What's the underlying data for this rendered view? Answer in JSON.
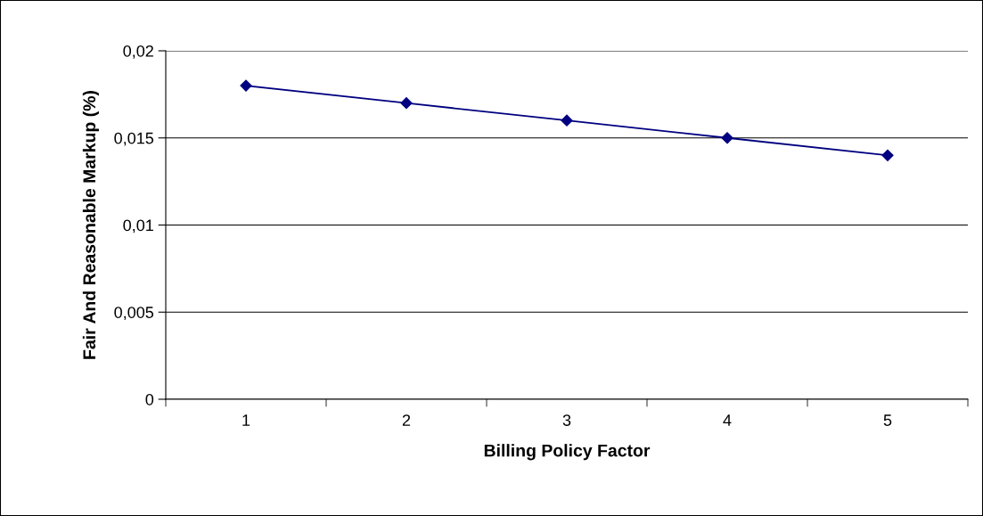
{
  "chart_data": {
    "type": "line",
    "xlabel": "Billing Policy Factor",
    "ylabel": "Fair And Reasonable Markup (%)",
    "categories": [
      "1",
      "2",
      "3",
      "4",
      "5"
    ],
    "series": [
      {
        "color": "#000080",
        "values": [
          0.018,
          0.017,
          0.016,
          0.015,
          0.014
        ]
      }
    ],
    "ylim": [
      0,
      0.02
    ],
    "yticks": [
      0,
      {
        "value": 0.005,
        "label": "0,005"
      },
      {
        "value": 0.01,
        "label": "0,01"
      },
      {
        "value": 0.015,
        "label": "0,015"
      },
      {
        "value": 0.02,
        "label": "0,02"
      }
    ],
    "grid": "y",
    "marker": "diamond",
    "line_style": "solid",
    "legend": false
  }
}
